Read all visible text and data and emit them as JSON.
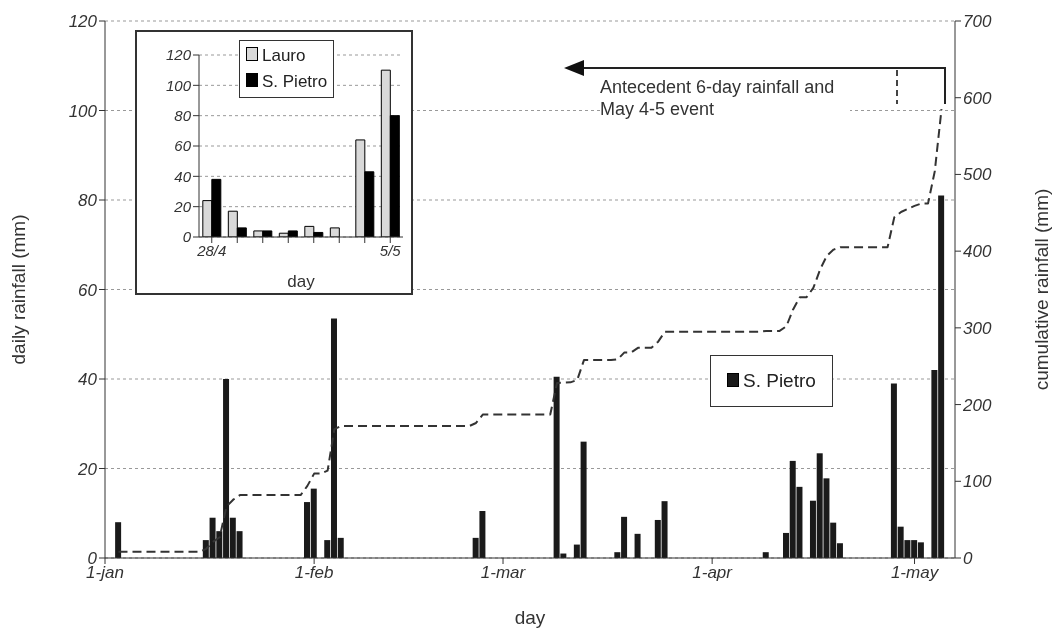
{
  "chart_data": [
    {
      "type": "bar",
      "xlabel": "day",
      "ylabel": "daily rainfall (mm)",
      "y2label": "cumulative rainfall (mm)",
      "xlim": [
        "--01-01",
        "--05-07"
      ],
      "xticks": [
        {
          "value": "--01-01",
          "label": "1-jan"
        },
        {
          "value": "--02-01",
          "label": "1-feb"
        },
        {
          "value": "--03-01",
          "label": "1-mar"
        },
        {
          "value": "--04-01",
          "label": "1-apr"
        },
        {
          "value": "--05-01",
          "label": "1-may"
        }
      ],
      "ylim": [
        0,
        120
      ],
      "yticks": [
        0,
        20,
        40,
        60,
        80,
        100,
        120
      ],
      "y2lim": [
        0,
        700
      ],
      "y2ticks": [
        0,
        100,
        200,
        300,
        400,
        500,
        600,
        700
      ],
      "grid": "y",
      "legend": "right",
      "annotations": [
        "Antecedent 6-day rainfall and May 4-5 event"
      ],
      "series": [
        {
          "name": "S. Pietro",
          "color": "#1a1a1a",
          "x": [
            "--01-03",
            "--01-16",
            "--01-17",
            "--01-18",
            "--01-19",
            "--01-20",
            "--01-21",
            "--01-31",
            "--02-01",
            "--02-03",
            "--02-04",
            "--02-05",
            "--02-25",
            "--02-26",
            "--03-09",
            "--03-10",
            "--03-12",
            "--03-13",
            "--03-18",
            "--03-19",
            "--03-21",
            "--03-24",
            "--03-25",
            "--04-09",
            "--04-12",
            "--04-13",
            "--04-14",
            "--04-16",
            "--04-17",
            "--04-18",
            "--04-19",
            "--04-20",
            "--04-28",
            "--04-29",
            "--04-30",
            "--05-01",
            "--05-02",
            "--05-04",
            "--05-05"
          ],
          "values": [
            8,
            4,
            9,
            6,
            40,
            9,
            6,
            12.5,
            15.5,
            4,
            53.5,
            4.5,
            4.5,
            10.5,
            40.5,
            1,
            3,
            26,
            1.3,
            9.2,
            5.4,
            8.5,
            12.7,
            1.3,
            5.6,
            21.7,
            15.9,
            12.8,
            23.4,
            17.8,
            7.9,
            3.3,
            39,
            7,
            4,
            4,
            3.5,
            42,
            81
          ]
        },
        {
          "type": "line",
          "axis": "y2",
          "line_style": "dashed",
          "color": "#333333",
          "x": [
            "--01-03",
            "--01-15",
            "--01-16",
            "--01-17",
            "--01-18",
            "--01-19",
            "--01-20",
            "--01-21",
            "--01-30",
            "--01-31",
            "--02-01",
            "--02-02",
            "--02-03",
            "--02-04",
            "--02-05",
            "--02-24",
            "--02-25",
            "--02-26",
            "--03-08",
            "--03-09",
            "--03-11",
            "--03-12",
            "--03-13",
            "--03-17",
            "--03-18",
            "--03-19",
            "--03-20",
            "--03-21",
            "--03-23",
            "--03-24",
            "--03-25",
            "--04-08",
            "--04-09",
            "--04-11",
            "--04-12",
            "--04-13",
            "--04-14",
            "--04-15",
            "--04-16",
            "--04-17",
            "--04-18",
            "--04-19",
            "--04-20",
            "--04-27",
            "--04-28",
            "--04-29",
            "--04-30",
            "--05-01",
            "--05-02",
            "--05-03",
            "--05-04",
            "--05-05"
          ],
          "values": [
            8,
            8,
            12,
            21,
            27,
            67,
            76,
            82,
            82,
            94,
            110,
            110,
            114,
            168,
            172,
            172,
            176,
            187,
            187,
            228,
            229,
            232,
            258,
            258,
            259,
            268,
            268,
            274,
            274,
            282,
            295,
            295,
            296,
            296,
            302,
            324,
            340,
            340,
            352,
            376,
            394,
            402,
            405,
            405,
            444,
            451,
            455,
            459,
            462,
            462,
            504,
            585
          ]
        }
      ]
    },
    {
      "type": "bar",
      "categories": [
        "28/4",
        null,
        null,
        null,
        null,
        null,
        null,
        "5/5"
      ],
      "xlabel": "day",
      "ylim": [
        0,
        120
      ],
      "yticks": [
        0,
        20,
        40,
        60,
        80,
        100,
        120
      ],
      "grid": "y",
      "legend": "top left",
      "series": [
        {
          "name": "Lauro",
          "color": "#d9d9d9",
          "values": [
            24,
            17,
            4,
            2.5,
            7,
            6,
            64,
            110
          ]
        },
        {
          "name": "S. Pietro",
          "color": "#000000",
          "values": [
            38,
            6,
            4,
            4,
            3,
            0,
            43,
            80
          ]
        }
      ]
    }
  ]
}
